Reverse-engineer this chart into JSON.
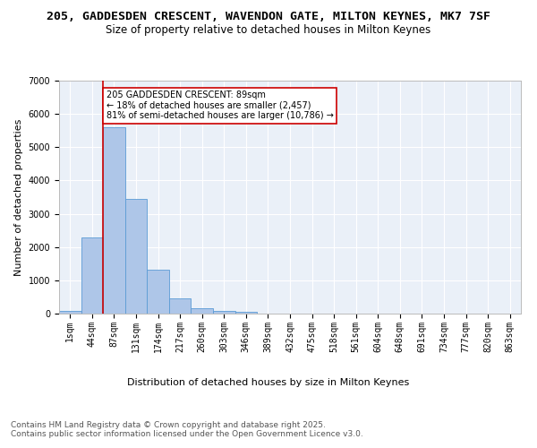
{
  "title_line1": "205, GADDESDEN CRESCENT, WAVENDON GATE, MILTON KEYNES, MK7 7SF",
  "title_line2": "Size of property relative to detached houses in Milton Keynes",
  "xlabel": "Distribution of detached houses by size in Milton Keynes",
  "ylabel": "Number of detached properties",
  "categories": [
    "1sqm",
    "44sqm",
    "87sqm",
    "131sqm",
    "174sqm",
    "217sqm",
    "260sqm",
    "303sqm",
    "346sqm",
    "389sqm",
    "432sqm",
    "475sqm",
    "518sqm",
    "561sqm",
    "604sqm",
    "648sqm",
    "691sqm",
    "734sqm",
    "777sqm",
    "820sqm",
    "863sqm"
  ],
  "values": [
    90,
    2300,
    5600,
    3450,
    1320,
    470,
    175,
    90,
    50,
    0,
    0,
    0,
    0,
    0,
    0,
    0,
    0,
    0,
    0,
    0,
    0
  ],
  "bar_color": "#aec6e8",
  "bar_edge_color": "#5b9bd5",
  "vline_color": "#cc0000",
  "annotation_text": "205 GADDESDEN CRESCENT: 89sqm\n← 18% of detached houses are smaller (2,457)\n81% of semi-detached houses are larger (10,786) →",
  "annotation_box_color": "#cc0000",
  "ylim": [
    0,
    7000
  ],
  "yticks": [
    0,
    1000,
    2000,
    3000,
    4000,
    5000,
    6000,
    7000
  ],
  "background_color": "#eaf0f8",
  "grid_color": "#ffffff",
  "footer_text": "Contains HM Land Registry data © Crown copyright and database right 2025.\nContains public sector information licensed under the Open Government Licence v3.0.",
  "title_fontsize": 9.5,
  "subtitle_fontsize": 8.5,
  "axis_label_fontsize": 8,
  "tick_fontsize": 7,
  "annotation_fontsize": 7,
  "footer_fontsize": 6.5,
  "vline_bin_index": 2
}
